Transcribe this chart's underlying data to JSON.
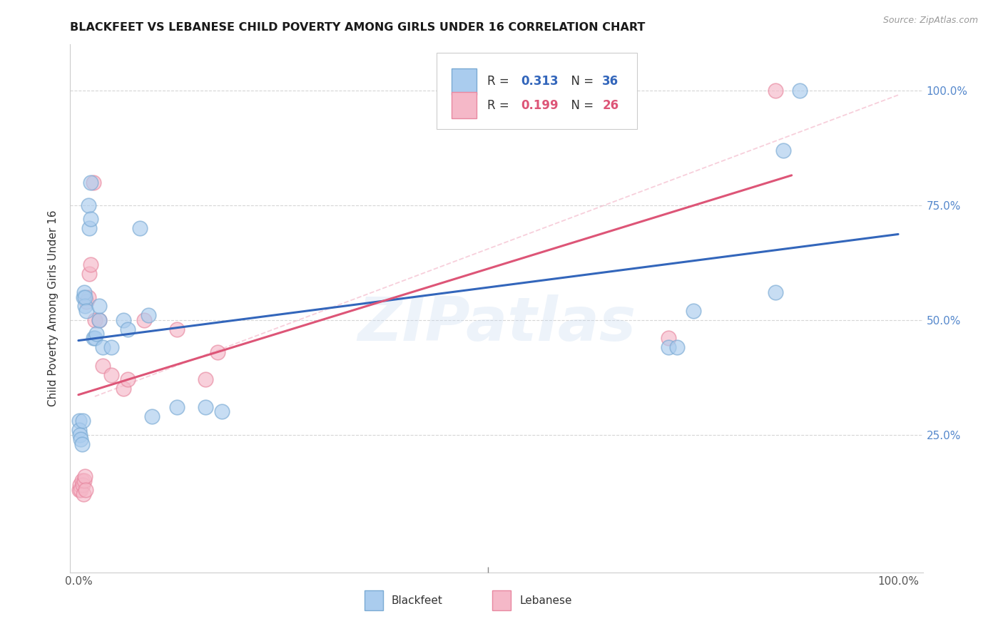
{
  "title": "BLACKFEET VS LEBANESE CHILD POVERTY AMONG GIRLS UNDER 16 CORRELATION CHART",
  "source": "Source: ZipAtlas.com",
  "ylabel": "Child Poverty Among Girls Under 16",
  "background_color": "#ffffff",
  "blackfeet_color": "#aaccee",
  "blackfeet_edge_color": "#7aaad4",
  "lebanese_color": "#f5b8c8",
  "lebanese_edge_color": "#e888a0",
  "blackfeet_line_color": "#3366bb",
  "lebanese_line_color": "#dd5577",
  "dash_color": "#f5b8c8",
  "r_blackfeet": "0.313",
  "n_blackfeet": "36",
  "r_lebanese": "0.199",
  "n_lebanese": "26",
  "legend_text_color": "#3366bb",
  "legend_r_color": "#333333",
  "blackfeet_x": [
    0.001,
    0.001,
    0.002,
    0.003,
    0.004,
    0.005,
    0.006,
    0.007,
    0.008,
    0.008,
    0.01,
    0.012,
    0.013,
    0.015,
    0.018,
    0.02,
    0.022,
    0.025,
    0.03,
    0.04,
    0.055,
    0.06,
    0.075,
    0.09,
    0.12,
    0.155,
    0.175,
    0.72,
    0.73,
    0.75,
    0.85,
    0.86,
    0.88,
    0.015,
    0.025,
    0.085
  ],
  "blackfeet_y": [
    0.28,
    0.26,
    0.25,
    0.24,
    0.23,
    0.28,
    0.55,
    0.56,
    0.53,
    0.55,
    0.52,
    0.75,
    0.7,
    0.72,
    0.46,
    0.46,
    0.47,
    0.5,
    0.44,
    0.44,
    0.5,
    0.48,
    0.7,
    0.29,
    0.31,
    0.31,
    0.3,
    0.44,
    0.44,
    0.52,
    0.56,
    0.87,
    1.0,
    0.8,
    0.53,
    0.51
  ],
  "lebanese_x": [
    0.001,
    0.002,
    0.003,
    0.004,
    0.005,
    0.006,
    0.007,
    0.008,
    0.009,
    0.01,
    0.012,
    0.013,
    0.015,
    0.018,
    0.02,
    0.025,
    0.03,
    0.04,
    0.055,
    0.06,
    0.08,
    0.12,
    0.155,
    0.17,
    0.72,
    0.85
  ],
  "lebanese_y": [
    0.13,
    0.14,
    0.13,
    0.15,
    0.14,
    0.12,
    0.15,
    0.16,
    0.13,
    0.54,
    0.55,
    0.6,
    0.62,
    0.8,
    0.5,
    0.5,
    0.4,
    0.38,
    0.35,
    0.37,
    0.5,
    0.48,
    0.37,
    0.43,
    0.46,
    1.0
  ],
  "xlim": [
    -0.01,
    1.03
  ],
  "ylim": [
    -0.05,
    1.1
  ],
  "yticks": [
    0.25,
    0.5,
    0.75,
    1.0
  ],
  "ytick_labels_right": [
    "25.0%",
    "50.0%",
    "75.0%",
    "100.0%"
  ],
  "right_tick_color": "#5588cc",
  "watermark_text": "ZIPatlas",
  "watermark_color": "#c5d8f0",
  "watermark_alpha": 0.3,
  "watermark_fontsize": 62
}
